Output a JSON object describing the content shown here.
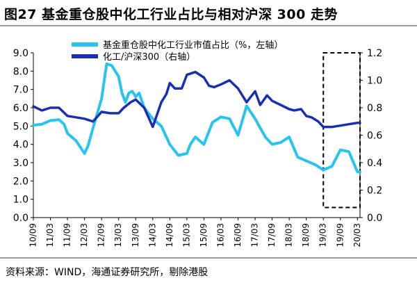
{
  "figure": {
    "title": "图27 基金重仓股中化工行业占比与相对沪深 300 走势",
    "source": "资料来源：WIND，海通证券研究所，剔除港股"
  },
  "chart_data": {
    "type": "line",
    "title": "图27 基金重仓股中化工行业占比与相对沪深 300 走势",
    "x_ticks": [
      "10/09",
      "11/03",
      "11/09",
      "12/03",
      "12/09",
      "13/03",
      "13/09",
      "14/03",
      "14/09",
      "15/03",
      "15/09",
      "16/03",
      "16/09",
      "17/03",
      "17/09",
      "18/03",
      "18/09",
      "19/03",
      "19/09",
      "20/03"
    ],
    "x_range": [
      0,
      19.15
    ],
    "y_left": {
      "range": [
        0,
        9
      ],
      "ticks": [
        "0.0",
        "1.0",
        "2.0",
        "3.0",
        "4.0",
        "5.0",
        "6.0",
        "7.0",
        "8.0",
        "9.0"
      ]
    },
    "y_right": {
      "range": [
        0,
        1.2
      ],
      "ticks": [
        "0.0",
        "0.2",
        "0.4",
        "0.6",
        "0.8",
        "1.0",
        "1.2"
      ]
    },
    "legend_position": "top-center",
    "highlight_box": {
      "x": [
        17.0,
        19.15
      ],
      "y_left": [
        0.55,
        9.0
      ],
      "style": "dashed"
    },
    "series": [
      {
        "name": "基金重仓股中化工行业市值占比（%，左轴）",
        "axis": "left",
        "color": "#29C4EE",
        "x": [
          0,
          0.5,
          1,
          1.5,
          1.8,
          2,
          2.5,
          3,
          3.2,
          3.5,
          4,
          4.3,
          4.6,
          5,
          5.2,
          5.4,
          5.6,
          5.8,
          6,
          6.2,
          6.5,
          7,
          7.5,
          8,
          8.5,
          9,
          9.2,
          9.5,
          10,
          10.5,
          11,
          11.5,
          12,
          12.5,
          13,
          13.3,
          13.6,
          14,
          14.5,
          15,
          15.5,
          16,
          16.5,
          17,
          17.5,
          18,
          18.5,
          19,
          19.15
        ],
        "y": [
          5.05,
          5.1,
          5.3,
          5.35,
          5.1,
          4.6,
          4.2,
          3.5,
          3.9,
          4.9,
          6.5,
          8.4,
          8.3,
          7.7,
          6.8,
          6.3,
          6.8,
          6.9,
          6.6,
          6.8,
          6.0,
          5.4,
          5.0,
          4.0,
          3.4,
          3.5,
          4.0,
          4.4,
          4.0,
          5.2,
          5.5,
          5.4,
          4.5,
          6.1,
          5.4,
          4.9,
          4.4,
          4.0,
          4.1,
          4.4,
          3.3,
          3.1,
          2.9,
          2.6,
          2.8,
          3.7,
          3.6,
          2.5,
          2.5
        ]
      },
      {
        "name": "化工/沪深300（右轴）",
        "axis": "right",
        "color": "#1A2FB0",
        "x": [
          0,
          0.5,
          1,
          1.5,
          2,
          2.5,
          3,
          3.5,
          4,
          4.5,
          5,
          5.3,
          5.7,
          6,
          6.5,
          7,
          7.5,
          7.8,
          8,
          8.3,
          8.7,
          9,
          9.5,
          10,
          10.3,
          10.6,
          11,
          11.5,
          12,
          12.5,
          13,
          13.3,
          13.7,
          14,
          14.5,
          15,
          15.3,
          15.7,
          16,
          16.3,
          16.7,
          17,
          17.5,
          18,
          18.5,
          19,
          19.15
        ],
        "y": [
          0.81,
          0.78,
          0.8,
          0.8,
          0.74,
          0.73,
          0.72,
          0.7,
          0.77,
          0.76,
          0.76,
          0.8,
          0.84,
          0.86,
          0.8,
          0.66,
          0.84,
          0.9,
          0.98,
          0.94,
          0.94,
          1.04,
          1.06,
          1.02,
          0.96,
          0.95,
          0.97,
          1.0,
          0.94,
          0.84,
          0.92,
          0.82,
          0.89,
          0.85,
          0.82,
          0.79,
          0.78,
          0.79,
          0.74,
          0.73,
          0.7,
          0.66,
          0.66,
          0.67,
          0.68,
          0.69,
          0.69
        ]
      }
    ]
  }
}
